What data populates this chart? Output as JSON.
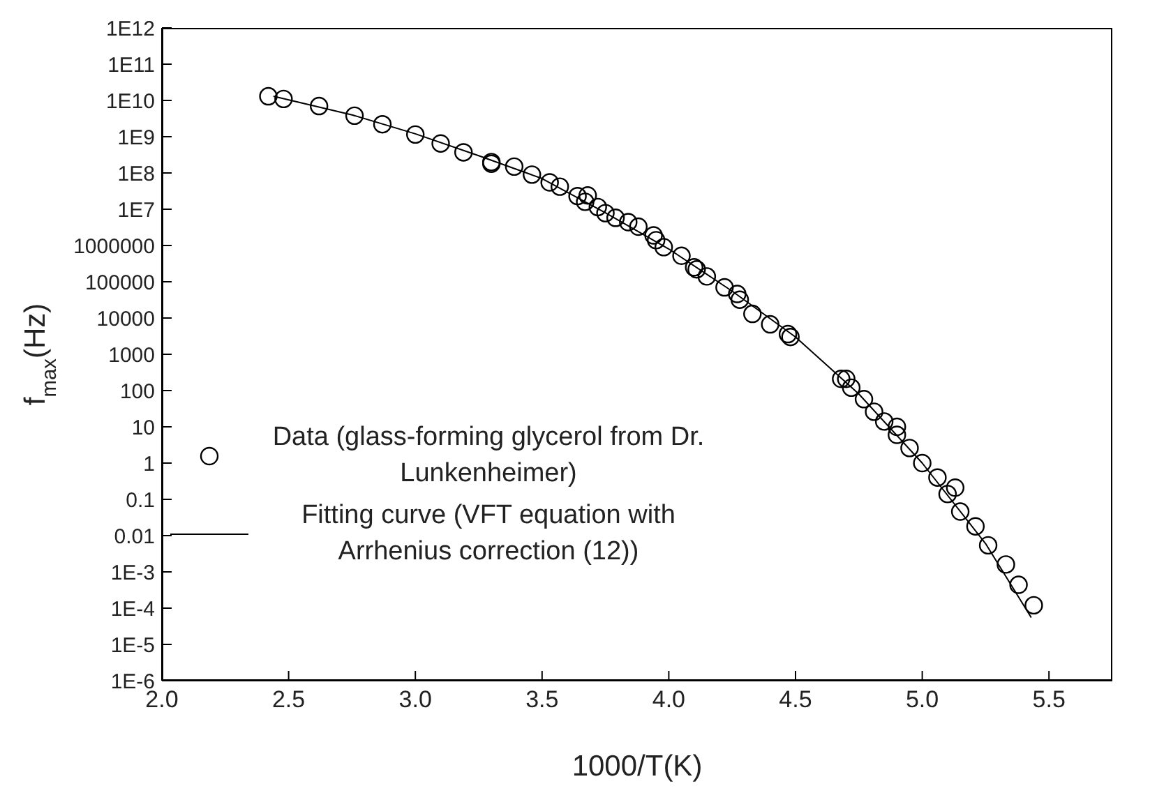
{
  "chart_data": {
    "type": "scatter",
    "xlabel": "1000/T(K)",
    "ylabel": "f$_{max}$(Hz)",
    "log": "y",
    "legend": "bottom left",
    "marker": "circle",
    "grid": false,
    "xlim": [
      2.0,
      5.75
    ],
    "xticks": [
      {
        "value": 2,
        "label": "2.0"
      },
      2.5,
      {
        "value": 3,
        "label": "3.0"
      },
      3.5,
      {
        "value": 4,
        "label": "4.0"
      },
      4.5,
      {
        "value": 5,
        "label": "5.0"
      },
      5.5
    ],
    "ylim": [
      1e-06,
      1000000000000.0
    ],
    "yticks": [
      {
        "value": 1e-06,
        "label": "1E-6"
      },
      {
        "value": 1e-05,
        "label": "1E-5"
      },
      {
        "value": 0.0001,
        "label": "1E-4"
      },
      {
        "value": 0.001,
        "label": "1E-3"
      },
      0.01,
      0.1,
      1,
      10,
      100,
      1000,
      10000,
      100000,
      1000000,
      {
        "value": 10000000.0,
        "label": "1E7"
      },
      {
        "value": 100000000.0,
        "label": "1E8"
      },
      {
        "value": 1000000000.0,
        "label": "1E9"
      },
      {
        "value": 10000000000.0,
        "label": "1E10"
      },
      {
        "value": 100000000000.0,
        "label": "1E11"
      },
      {
        "value": 1000000000000.0,
        "label": "1E12"
      }
    ],
    "series": [
      {
        "name": "Data (glass-forming glycerol from Dr. Lunkenheimer)",
        "color": "#000000",
        "x": [
          2.42,
          2.48,
          2.62,
          2.76,
          2.87,
          3.0,
          3.1,
          3.19,
          3.3,
          3.3,
          3.39,
          3.46,
          3.53,
          3.57,
          3.64,
          3.68,
          3.67,
          3.72,
          3.75,
          3.79,
          3.84,
          3.88,
          3.94,
          3.95,
          3.98,
          4.05,
          4.1,
          4.11,
          4.15,
          4.22,
          4.27,
          4.28,
          4.33,
          4.4,
          4.47,
          4.48,
          4.68,
          4.7,
          4.72,
          4.77,
          4.81,
          4.85,
          4.9,
          4.9,
          4.95,
          5.0,
          5.06,
          5.13,
          5.1,
          5.15,
          5.21,
          5.26,
          5.33,
          5.38,
          5.44
        ],
        "values": [
          13000000000.0,
          11000000000.0,
          7000000000.0,
          3800000000.0,
          2200000000.0,
          1150000000.0,
          650000000.0,
          370000000.0,
          200000000.0,
          180000000.0,
          150000000.0,
          90000000.0,
          55000000.0,
          42000000.0,
          23000000.0,
          24000000.0,
          16000000.0,
          11500000.0,
          7800000.0,
          5800000.0,
          4400000.0,
          3300000.0,
          1900000.0,
          1400000.0,
          900000.0,
          520000.0,
          250000.0,
          220000.0,
          140000.0,
          70000.0,
          46000.0,
          32000.0,
          13000.0,
          6700.0,
          3600.0,
          3000.0,
          210,
          210,
          120,
          58,
          26,
          14,
          10,
          6,
          2.6,
          1,
          0.4,
          0.21,
          0.14,
          0.046,
          0.018,
          0.0054,
          0.0016,
          0.00044,
          0.00012
        ]
      },
      {
        "name": "Fitting curve (VFT equation with Arrhenius correction (12))",
        "type": "line",
        "color": "#000000",
        "marker": "none",
        "line_style": "solid",
        "x": [
          2.44,
          2.75,
          3.0,
          3.25,
          3.5,
          3.75,
          4.0,
          4.25,
          4.5,
          4.75,
          5.0,
          5.25,
          5.43
        ],
        "values": [
          13000000000.0,
          4000000000.0,
          1200000000.0,
          300000000.0,
          70000000.0,
          8000000.0,
          800000.0,
          55000.0,
          3000.0,
          80,
          1,
          0.006,
          5.5e-05
        ]
      }
    ]
  }
}
